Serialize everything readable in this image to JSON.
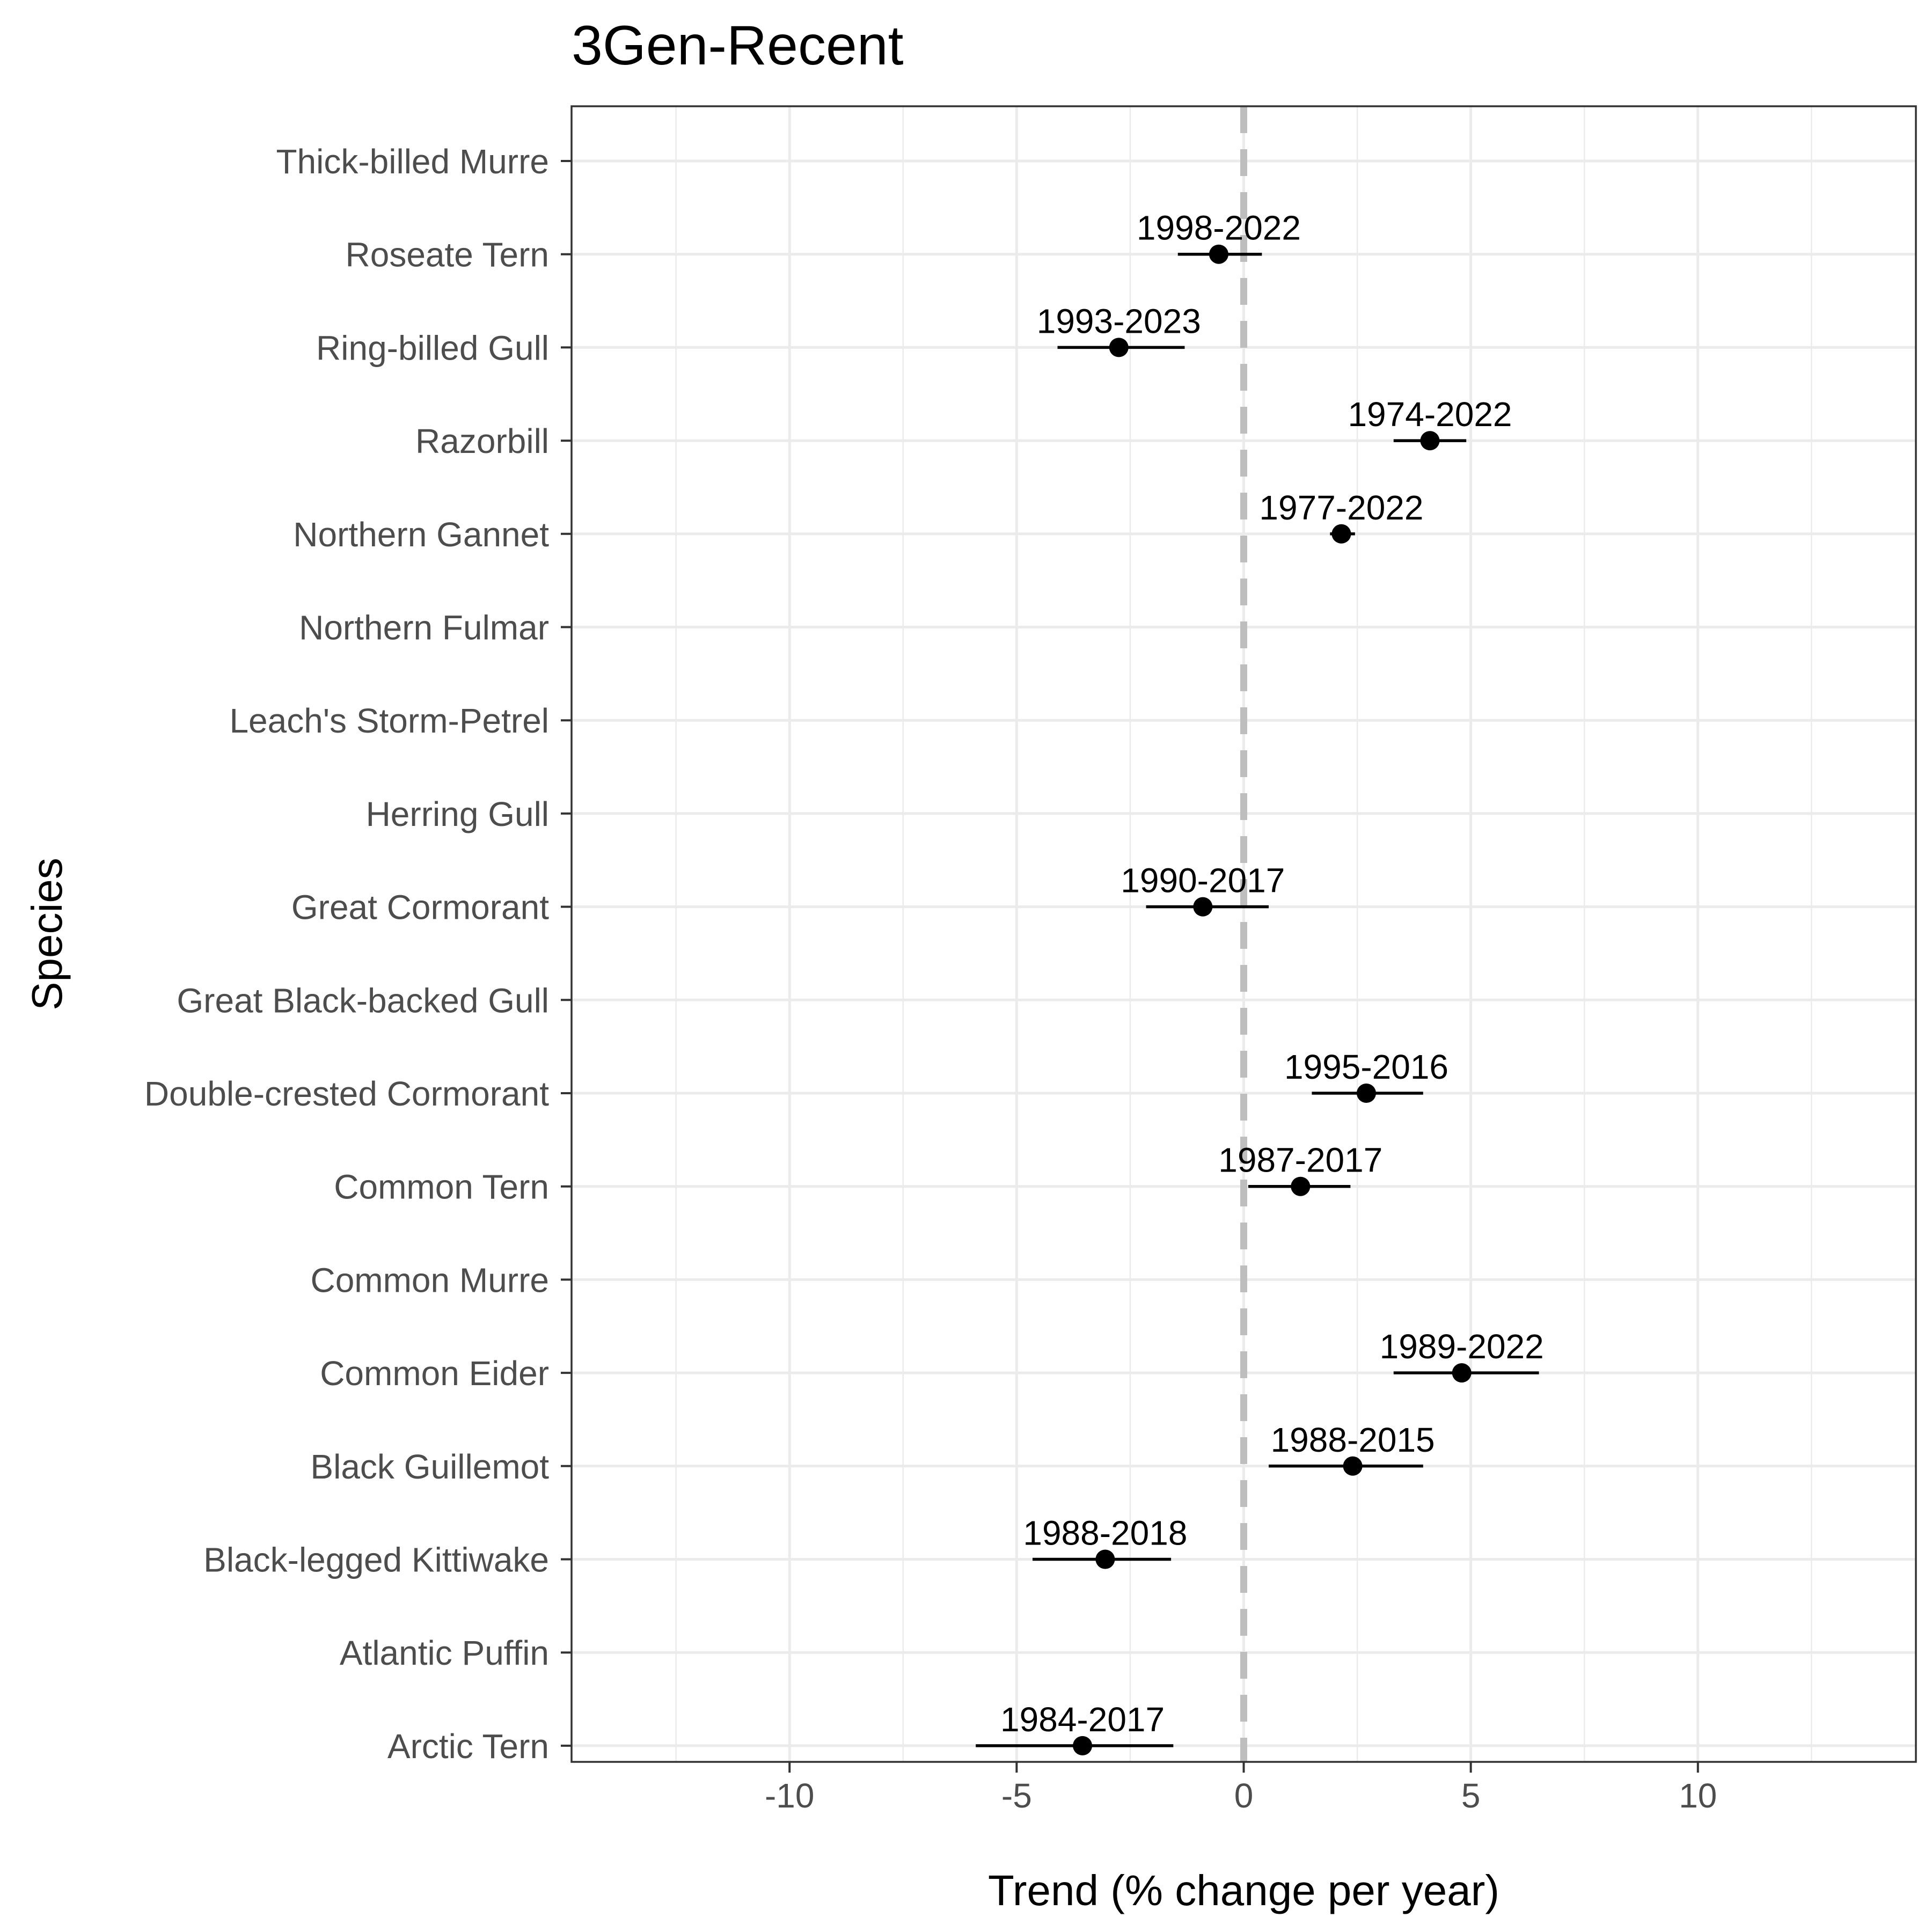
{
  "chart_data": {
    "type": "scatter",
    "title": "3Gen-Recent",
    "xlabel": "Trend (% change per year)",
    "ylabel": "Species",
    "xlim": [
      -14.8,
      14.8
    ],
    "x_ticks": [
      -10,
      -5,
      0,
      5,
      10
    ],
    "x_tick_labels": [
      "-10",
      "-5",
      "0",
      "5",
      "10"
    ],
    "reference_line_x": 0,
    "grid": true,
    "categories": [
      "Thick-billed Murre",
      "Roseate Tern",
      "Ring-billed Gull",
      "Razorbill",
      "Northern Gannet",
      "Northern Fulmar",
      "Leach's Storm-Petrel",
      "Herring Gull",
      "Great Cormorant",
      "Great Black-backed Gull",
      "Double-crested Cormorant",
      "Common Tern",
      "Common Murre",
      "Common Eider",
      "Black Guillemot",
      "Black-legged Kittiwake",
      "Atlantic Puffin",
      "Arctic Tern"
    ],
    "points": [
      {
        "species": "Roseate Tern",
        "trend": -0.55,
        "lower": -1.45,
        "upper": 0.4,
        "period": "1998-2022"
      },
      {
        "species": "Ring-billed Gull",
        "trend": -2.75,
        "lower": -4.1,
        "upper": -1.3,
        "period": "1993-2023"
      },
      {
        "species": "Razorbill",
        "trend": 4.1,
        "lower": 3.3,
        "upper": 4.9,
        "period": "1974-2022"
      },
      {
        "species": "Northern Gannet",
        "trend": 2.15,
        "lower": 1.9,
        "upper": 2.45,
        "period": "1977-2022"
      },
      {
        "species": "Great Cormorant",
        "trend": -0.9,
        "lower": -2.15,
        "upper": 0.55,
        "period": "1990-2017"
      },
      {
        "species": "Double-crested Cormorant",
        "trend": 2.7,
        "lower": 1.5,
        "upper": 3.95,
        "period": "1995-2016"
      },
      {
        "species": "Common Tern",
        "trend": 1.25,
        "lower": 0.1,
        "upper": 2.35,
        "period": "1987-2017"
      },
      {
        "species": "Common Eider",
        "trend": 4.8,
        "lower": 3.3,
        "upper": 6.5,
        "period": "1989-2022"
      },
      {
        "species": "Black Guillemot",
        "trend": 2.4,
        "lower": 0.55,
        "upper": 3.95,
        "period": "1988-2015"
      },
      {
        "species": "Black-legged Kittiwake",
        "trend": -3.05,
        "lower": -4.65,
        "upper": -1.6,
        "period": "1988-2018"
      },
      {
        "species": "Arctic Tern",
        "trend": -3.55,
        "lower": -5.9,
        "upper": -1.55,
        "period": "1984-2017"
      }
    ]
  }
}
